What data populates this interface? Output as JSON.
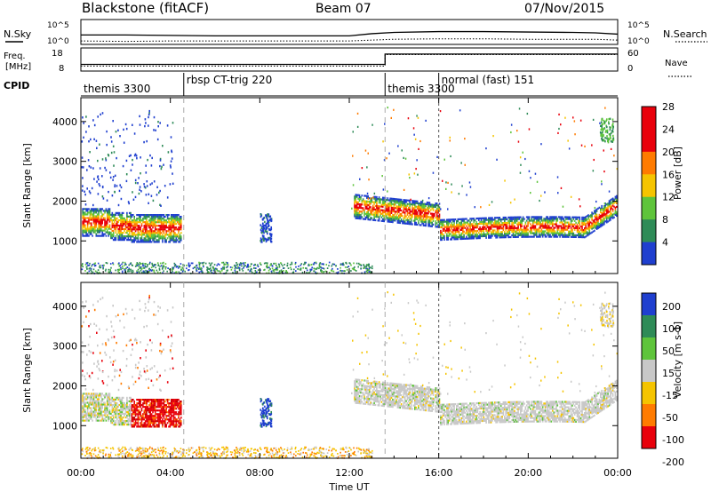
{
  "header": {
    "station": "Blackstone (fitACF)",
    "beam": "Beam 07",
    "date": "07/Nov/2015"
  },
  "panel_labels": {
    "nsky": "N.Sky",
    "nsearch": "N.Search",
    "freq": "Freq.",
    "freq_unit": "[MHz]",
    "nave": "Nave",
    "cpid": "CPID"
  },
  "colors": {
    "red": "#e8000b",
    "orange": "#ff7b00",
    "yellow": "#f5c400",
    "green": "#5ec43b",
    "teal": "#2e8b57",
    "blue": "#1f3fcf",
    "gray": "#c8c8c8",
    "darkred": "#c00000"
  },
  "chart_data": [
    {
      "type": "line",
      "name": "noise-panel",
      "x": [
        0,
        2,
        4,
        6,
        8,
        10,
        12,
        13,
        14,
        16,
        18,
        20,
        22,
        23,
        24
      ],
      "series": [
        {
          "name": "N.Sky",
          "values": [
            2.0,
            2.0,
            1.9,
            1.8,
            1.8,
            1.8,
            1.8,
            2.3,
            2.6,
            2.8,
            2.8,
            2.7,
            2.6,
            2.5,
            2.2
          ]
        },
        {
          "name": "N.Search",
          "values": [
            0.6,
            0.5,
            0.6,
            0.6,
            0.6,
            0.6,
            0.6,
            0.8,
            1.0,
            1.1,
            1.1,
            1.0,
            1.0,
            1.0,
            0.8
          ]
        }
      ],
      "left_ticks": [
        "10^5",
        "10^0"
      ],
      "right_ticks": [
        "10^5",
        "10^0"
      ]
    },
    {
      "type": "line",
      "name": "freq-nave-panel",
      "x": [
        0,
        13.6,
        13.6,
        24
      ],
      "series": [
        {
          "name": "Freq.",
          "values": [
            10.5,
            10.5,
            15.8,
            15.8
          ]
        },
        {
          "name": "Nave",
          "values": [
            10,
            10,
            45,
            45
          ]
        }
      ],
      "left_ticks": [
        "18",
        "8"
      ],
      "right_ticks": [
        "60",
        "0"
      ]
    },
    {
      "type": "table",
      "name": "cpid",
      "segments": [
        {
          "label": "themis 3300",
          "start": 0,
          "end": 4.6
        },
        {
          "label": "rbsp CT-trig 220",
          "start": 4.6,
          "end": 13.6
        },
        {
          "label": "themis 3300",
          "start": 13.6,
          "end": 16.0
        },
        {
          "label": "normal (fast) 151",
          "start": 16.0,
          "end": 24
        }
      ]
    },
    {
      "type": "heatmap",
      "name": "power",
      "ylabel": "Slant Range [km]",
      "xlim": [
        0,
        24
      ],
      "ylim": [
        180,
        4600
      ],
      "y_ticks": [
        1000,
        2000,
        3000,
        4000
      ],
      "colorbar": {
        "label": "Power [dB]",
        "ticks": [
          4,
          8,
          12,
          16,
          20,
          24,
          28
        ],
        "colors": [
          "#1f3fcf",
          "#2e8b57",
          "#5ec43b",
          "#f5c400",
          "#ff7b00",
          "#e8000b"
        ]
      }
    },
    {
      "type": "heatmap",
      "name": "velocity",
      "ylabel": "Slant Range [km]",
      "xlabel": "Time UT",
      "xlim": [
        0,
        24
      ],
      "ylim": [
        180,
        4600
      ],
      "y_ticks": [
        1000,
        2000,
        3000,
        4000
      ],
      "x_ticks": [
        "00:00",
        "04:00",
        "08:00",
        "12:00",
        "16:00",
        "20:00",
        "00:00"
      ],
      "colorbar": {
        "label": "Velocity [m s-1]",
        "ticks": [
          200,
          100,
          50,
          15,
          -15,
          -50,
          -100,
          -200
        ],
        "colors": [
          "#1f3fcf",
          "#2e8b57",
          "#5ec43b",
          "#c8c8c8",
          "#f5c400",
          "#ff7b00",
          "#e8000b"
        ]
      }
    }
  ]
}
